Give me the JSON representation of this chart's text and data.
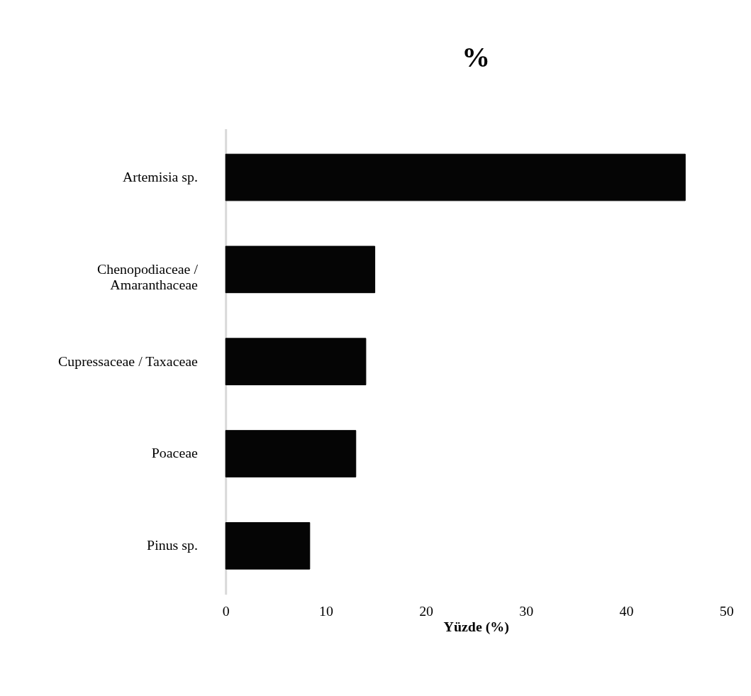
{
  "chart_data": {
    "type": "bar",
    "orientation": "horizontal",
    "title": "%",
    "xlabel": "Yüzde (%)",
    "categories": [
      "Artemisia sp.",
      "Chenopodiaceae / Amaranthaceae",
      "Cupressaceae / Taxaceae",
      "Poaceae",
      "Pinus sp."
    ],
    "values": [
      45.9,
      14.9,
      14.0,
      13.0,
      8.4
    ],
    "color": "#050505",
    "xlim": [
      0,
      50
    ],
    "xticks": [
      0,
      10,
      20,
      30,
      40,
      50
    ],
    "grid": false
  }
}
